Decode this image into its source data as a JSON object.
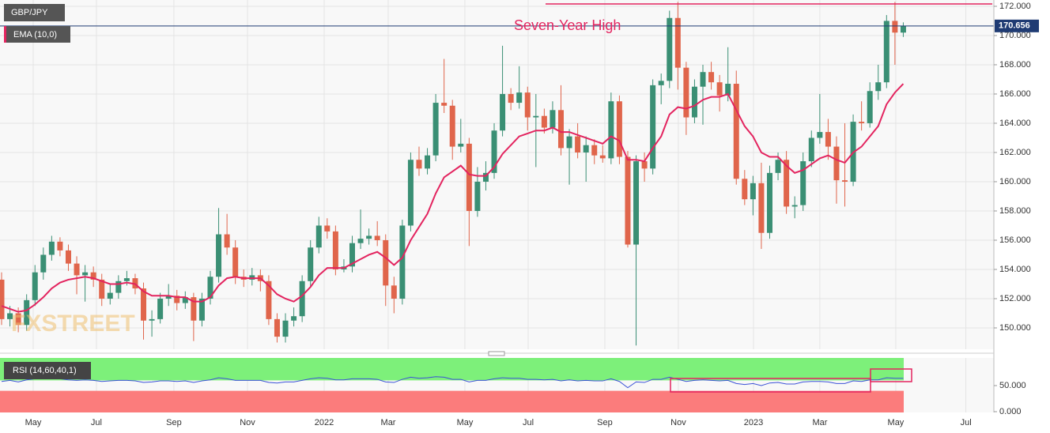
{
  "chart_data": {
    "type": "candlestick",
    "instrument": "GBP/JPY",
    "indicator": "EMA (10,0)",
    "annotation": "Seven-Year High",
    "annotation_level": 172.16,
    "watermark": "FXSTREET",
    "up_color": "#3a8f74",
    "down_color": "#e0654b",
    "ema_color": "#e3245f",
    "grid": true,
    "xlim": [
      -0.19,
      118.66
    ],
    "ylim": [
      148.54,
      172.43
    ],
    "xticks": [
      {
        "value": 3.79,
        "label": "May"
      },
      {
        "value": 11.36,
        "label": "Jul"
      },
      {
        "value": 20.64,
        "label": "Sep"
      },
      {
        "value": 29.45,
        "label": "Nov"
      },
      {
        "value": 38.64,
        "label": "2022"
      },
      {
        "value": 46.31,
        "label": "Mar"
      },
      {
        "value": 55.49,
        "label": "May"
      },
      {
        "value": 63.07,
        "label": "Jul"
      },
      {
        "value": 72.25,
        "label": "Sep"
      },
      {
        "value": 81.06,
        "label": "Nov"
      },
      {
        "value": 90.06,
        "label": "2023"
      },
      {
        "value": 98.01,
        "label": "Mar"
      },
      {
        "value": 107.1,
        "label": "May"
      },
      {
        "value": 115.5,
        "label": "Jul"
      }
    ],
    "yticks": [
      {
        "value": 150,
        "label": "150.000"
      },
      {
        "value": 152,
        "label": "152.000"
      },
      {
        "value": 154,
        "label": "154.000"
      },
      {
        "value": 156,
        "label": "156.000"
      },
      {
        "value": 158,
        "label": "158.000"
      },
      {
        "value": 160,
        "label": "160.000"
      },
      {
        "value": 162,
        "label": "162.000"
      },
      {
        "value": 164,
        "label": "164.000"
      },
      {
        "value": 166,
        "label": "166.000"
      },
      {
        "value": 168,
        "label": "168.000"
      },
      {
        "value": 170,
        "label": "170.000"
      },
      {
        "value": 172,
        "label": "172.000"
      }
    ],
    "candles": [
      [
        153.3,
        153.8,
        150.2,
        150.6
      ],
      [
        150.6,
        151.5,
        150.1,
        151.0
      ],
      [
        151.0,
        151.4,
        149.7,
        150.2
      ],
      [
        150.2,
        152.3,
        149.8,
        151.9
      ],
      [
        151.9,
        154.3,
        151.5,
        153.8
      ],
      [
        153.8,
        155.5,
        153.3,
        155.0
      ],
      [
        155.0,
        156.3,
        154.6,
        155.9
      ],
      [
        155.9,
        156.2,
        154.9,
        155.3
      ],
      [
        155.3,
        155.7,
        153.9,
        154.4
      ],
      [
        154.4,
        154.9,
        152.3,
        153.6
      ],
      [
        153.6,
        154.3,
        151.8,
        153.8
      ],
      [
        153.8,
        154.2,
        152.8,
        153.3
      ],
      [
        153.3,
        153.7,
        151.5,
        152.0
      ],
      [
        152.0,
        153.0,
        151.6,
        152.4
      ],
      [
        152.4,
        153.6,
        152.0,
        153.2
      ],
      [
        153.2,
        153.9,
        152.9,
        153.4
      ],
      [
        153.4,
        153.7,
        152.3,
        152.7
      ],
      [
        152.7,
        153.1,
        149.2,
        150.5
      ],
      [
        150.5,
        151.2,
        149.4,
        150.6
      ],
      [
        150.6,
        152.4,
        150.3,
        152.0
      ],
      [
        152.0,
        153.0,
        151.5,
        152.2
      ],
      [
        152.2,
        152.6,
        151.2,
        151.7
      ],
      [
        151.7,
        152.5,
        151.3,
        152.1
      ],
      [
        152.1,
        152.4,
        149.1,
        150.5
      ],
      [
        150.5,
        152.4,
        150.1,
        152.0
      ],
      [
        152.0,
        153.9,
        151.6,
        153.5
      ],
      [
        153.5,
        158.2,
        153.1,
        156.4
      ],
      [
        156.4,
        157.8,
        155.0,
        155.5
      ],
      [
        155.5,
        156.0,
        153.0,
        153.5
      ],
      [
        153.5,
        154.0,
        152.8,
        153.3
      ],
      [
        153.3,
        154.1,
        152.9,
        153.6
      ],
      [
        153.6,
        154.0,
        152.5,
        153.2
      ],
      [
        153.2,
        153.6,
        150.2,
        150.6
      ],
      [
        150.6,
        151.0,
        149.0,
        149.4
      ],
      [
        149.4,
        151.0,
        149.0,
        150.5
      ],
      [
        150.5,
        151.4,
        150.1,
        150.8
      ],
      [
        150.8,
        153.6,
        150.4,
        153.2
      ],
      [
        153.2,
        156.0,
        152.8,
        155.5
      ],
      [
        155.5,
        157.6,
        155.1,
        157.0
      ],
      [
        157.0,
        157.5,
        156.1,
        156.6
      ],
      [
        156.6,
        157.0,
        153.6,
        154.0
      ],
      [
        154.0,
        154.7,
        153.8,
        154.2
      ],
      [
        154.2,
        156.3,
        153.8,
        155.8
      ],
      [
        155.8,
        158.1,
        155.4,
        156.1
      ],
      [
        156.1,
        156.8,
        155.7,
        156.3
      ],
      [
        156.3,
        157.3,
        155.6,
        156.0
      ],
      [
        156.0,
        156.4,
        151.5,
        152.9
      ],
      [
        152.9,
        153.5,
        151.0,
        152.0
      ],
      [
        152.0,
        157.4,
        151.6,
        157.0
      ],
      [
        157.0,
        162.0,
        156.6,
        161.5
      ],
      [
        161.5,
        162.4,
        160.4,
        160.9
      ],
      [
        160.9,
        162.3,
        160.5,
        161.8
      ],
      [
        161.8,
        166.0,
        161.4,
        165.4
      ],
      [
        165.4,
        168.4,
        164.7,
        165.2
      ],
      [
        165.2,
        165.6,
        161.5,
        162.4
      ],
      [
        162.4,
        164.3,
        162.0,
        162.6
      ],
      [
        162.6,
        163.0,
        155.6,
        158.0
      ],
      [
        158.0,
        161.0,
        157.6,
        160.0
      ],
      [
        160.0,
        161.4,
        159.4,
        160.6
      ],
      [
        160.6,
        164.0,
        160.2,
        163.5
      ],
      [
        163.5,
        169.3,
        163.1,
        166.0
      ],
      [
        166.0,
        166.4,
        164.9,
        165.4
      ],
      [
        165.4,
        167.9,
        165.0,
        166.1
      ],
      [
        166.1,
        166.5,
        163.5,
        164.4
      ],
      [
        164.4,
        166.0,
        161.0,
        164.5
      ],
      [
        164.5,
        165.0,
        163.3,
        163.7
      ],
      [
        163.7,
        165.5,
        163.3,
        164.9
      ],
      [
        164.9,
        166.6,
        161.8,
        162.3
      ],
      [
        162.3,
        163.6,
        159.8,
        163.1
      ],
      [
        163.1,
        164.0,
        161.6,
        162.0
      ],
      [
        162.0,
        163.1,
        160.0,
        162.5
      ],
      [
        162.5,
        162.9,
        161.2,
        161.8
      ],
      [
        161.8,
        162.5,
        161.3,
        161.6
      ],
      [
        161.6,
        166.1,
        161.2,
        165.5
      ],
      [
        165.5,
        165.9,
        161.2,
        161.7
      ],
      [
        161.7,
        162.1,
        155.5,
        155.7
      ],
      [
        155.7,
        161.8,
        148.8,
        161.4
      ],
      [
        161.4,
        162.0,
        160.0,
        160.9
      ],
      [
        160.9,
        167.0,
        160.5,
        166.6
      ],
      [
        166.6,
        167.4,
        165.3,
        166.9
      ],
      [
        166.9,
        171.7,
        166.4,
        171.2
      ],
      [
        171.2,
        172.3,
        166.3,
        167.8
      ],
      [
        167.8,
        168.2,
        163.2,
        164.4
      ],
      [
        164.4,
        167.0,
        164.0,
        166.5
      ],
      [
        166.5,
        168.0,
        163.9,
        167.5
      ],
      [
        167.5,
        168.2,
        166.3,
        166.8
      ],
      [
        166.8,
        167.3,
        164.8,
        165.9
      ],
      [
        165.9,
        169.2,
        165.5,
        166.7
      ],
      [
        166.7,
        167.6,
        159.8,
        160.2
      ],
      [
        160.2,
        160.8,
        158.4,
        158.8
      ],
      [
        158.8,
        160.4,
        157.7,
        159.9
      ],
      [
        159.9,
        161.3,
        155.4,
        156.5
      ],
      [
        156.5,
        161.1,
        156.1,
        160.6
      ],
      [
        160.6,
        162.0,
        160.1,
        161.5
      ],
      [
        161.5,
        162.1,
        157.8,
        158.3
      ],
      [
        158.3,
        159.0,
        157.5,
        158.4
      ],
      [
        158.4,
        162.0,
        158.0,
        161.4
      ],
      [
        161.4,
        163.5,
        161.0,
        163.0
      ],
      [
        163.0,
        166.0,
        162.6,
        163.4
      ],
      [
        163.4,
        164.3,
        161.5,
        162.4
      ],
      [
        162.4,
        163.1,
        158.5,
        160.1
      ],
      [
        160.1,
        164.0,
        158.3,
        160.0
      ],
      [
        160.0,
        164.6,
        159.7,
        164.1
      ],
      [
        164.1,
        165.5,
        163.5,
        164.0
      ],
      [
        164.0,
        166.8,
        163.7,
        166.2
      ],
      [
        166.2,
        168.0,
        165.6,
        166.8
      ],
      [
        166.8,
        171.4,
        166.4,
        171.0
      ],
      [
        171.0,
        172.3,
        168.0,
        170.2
      ],
      [
        170.2,
        170.9,
        169.9,
        170.656
      ]
    ],
    "ema": [
      151.5,
      151.3,
      151.1,
      151.2,
      151.6,
      152.1,
      152.7,
      153.1,
      153.3,
      153.4,
      153.5,
      153.4,
      153.2,
      153.0,
      153.0,
      153.1,
      153.0,
      152.5,
      152.2,
      152.2,
      152.2,
      152.1,
      152.1,
      151.8,
      151.8,
      152.1,
      152.9,
      153.4,
      153.5,
      153.4,
      153.4,
      153.4,
      152.9,
      152.3,
      152.0,
      151.8,
      152.2,
      152.8,
      153.6,
      154.1,
      154.1,
      154.1,
      154.4,
      154.7,
      155.0,
      155.2,
      154.8,
      154.3,
      154.8,
      156.0,
      156.9,
      157.8,
      159.2,
      160.3,
      160.7,
      161.1,
      160.5,
      160.4,
      160.4,
      161.0,
      161.9,
      162.5,
      163.1,
      163.3,
      163.5,
      163.5,
      163.7,
      163.4,
      163.4,
      163.2,
      163.0,
      162.8,
      162.6,
      163.1,
      162.8,
      161.5,
      161.5,
      161.4,
      162.3,
      163.1,
      164.6,
      165.1,
      165.0,
      165.2,
      165.6,
      165.8,
      165.8,
      166.0,
      164.9,
      163.8,
      163.1,
      162.0,
      161.7,
      161.7,
      161.1,
      160.6,
      160.8,
      161.2,
      161.6,
      161.8,
      161.5,
      161.3,
      162.0,
      162.4,
      163.1,
      163.8,
      165.3,
      166.1,
      166.7
    ],
    "rsi": {
      "name": "RSI (14,60,40,1)",
      "color": "#3b52d6",
      "upper": 60,
      "lower": 40,
      "ylim": [
        -1.5,
        103
      ],
      "yticks": [
        {
          "value": 0,
          "label": "0.000"
        },
        {
          "value": 50,
          "label": "50.000"
        }
      ],
      "values": [
        58,
        60,
        57,
        61,
        63,
        64,
        65,
        63,
        61,
        60,
        61,
        60,
        58,
        59,
        60,
        60,
        59,
        56,
        57,
        59,
        59,
        58,
        59,
        56,
        59,
        61,
        65,
        63,
        60,
        60,
        60,
        60,
        56,
        55,
        57,
        57,
        60,
        63,
        65,
        64,
        61,
        61,
        63,
        63,
        63,
        62,
        57,
        56,
        62,
        66,
        64,
        65,
        67,
        66,
        62,
        62,
        57,
        60,
        60,
        63,
        65,
        64,
        64,
        62,
        62,
        61,
        62,
        59,
        61,
        59,
        60,
        59,
        59,
        63,
        58,
        46,
        57,
        56,
        62,
        62,
        66,
        62,
        58,
        60,
        61,
        60,
        59,
        60,
        54,
        52,
        54,
        50,
        55,
        56,
        53,
        53,
        57,
        58,
        58,
        57,
        54,
        54,
        59,
        58,
        61,
        61,
        65,
        64,
        64
      ]
    }
  }
}
